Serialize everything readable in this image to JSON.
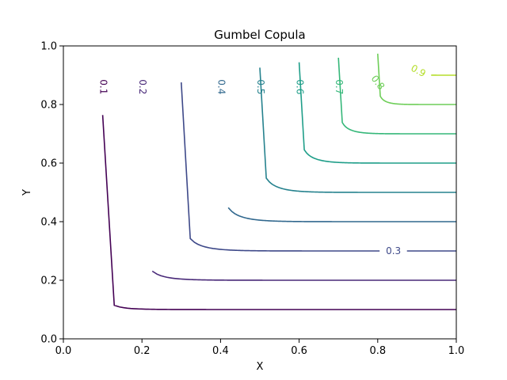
{
  "chart_data": {
    "type": "contour",
    "title": "Gumbel Copula",
    "xlabel": "X",
    "ylabel": "Y",
    "xlim": [
      0.0,
      1.0
    ],
    "ylim": [
      0.0,
      1.0
    ],
    "xticks": [
      "0.0",
      "0.2",
      "0.4",
      "0.6",
      "0.8",
      "1.0"
    ],
    "yticks": [
      "0.0",
      "0.2",
      "0.4",
      "0.6",
      "0.8",
      "1.0"
    ],
    "grid": false,
    "colormap": "viridis",
    "levels": [
      {
        "value": 0.1,
        "label": "0.1",
        "color": "#440154"
      },
      {
        "value": 0.2,
        "label": "0.2",
        "color": "#482878"
      },
      {
        "value": 0.3,
        "label": "0.3",
        "color": "#3e4989"
      },
      {
        "value": 0.4,
        "label": "0.4",
        "color": "#31688e"
      },
      {
        "value": 0.5,
        "label": "0.5",
        "color": "#26828e"
      },
      {
        "value": 0.6,
        "label": "0.6",
        "color": "#1f9e89"
      },
      {
        "value": 0.7,
        "label": "0.7",
        "color": "#35b779"
      },
      {
        "value": 0.8,
        "label": "0.8",
        "color": "#6ece58"
      },
      {
        "value": 0.9,
        "label": "0.9",
        "color": "#b5de2b"
      }
    ]
  }
}
